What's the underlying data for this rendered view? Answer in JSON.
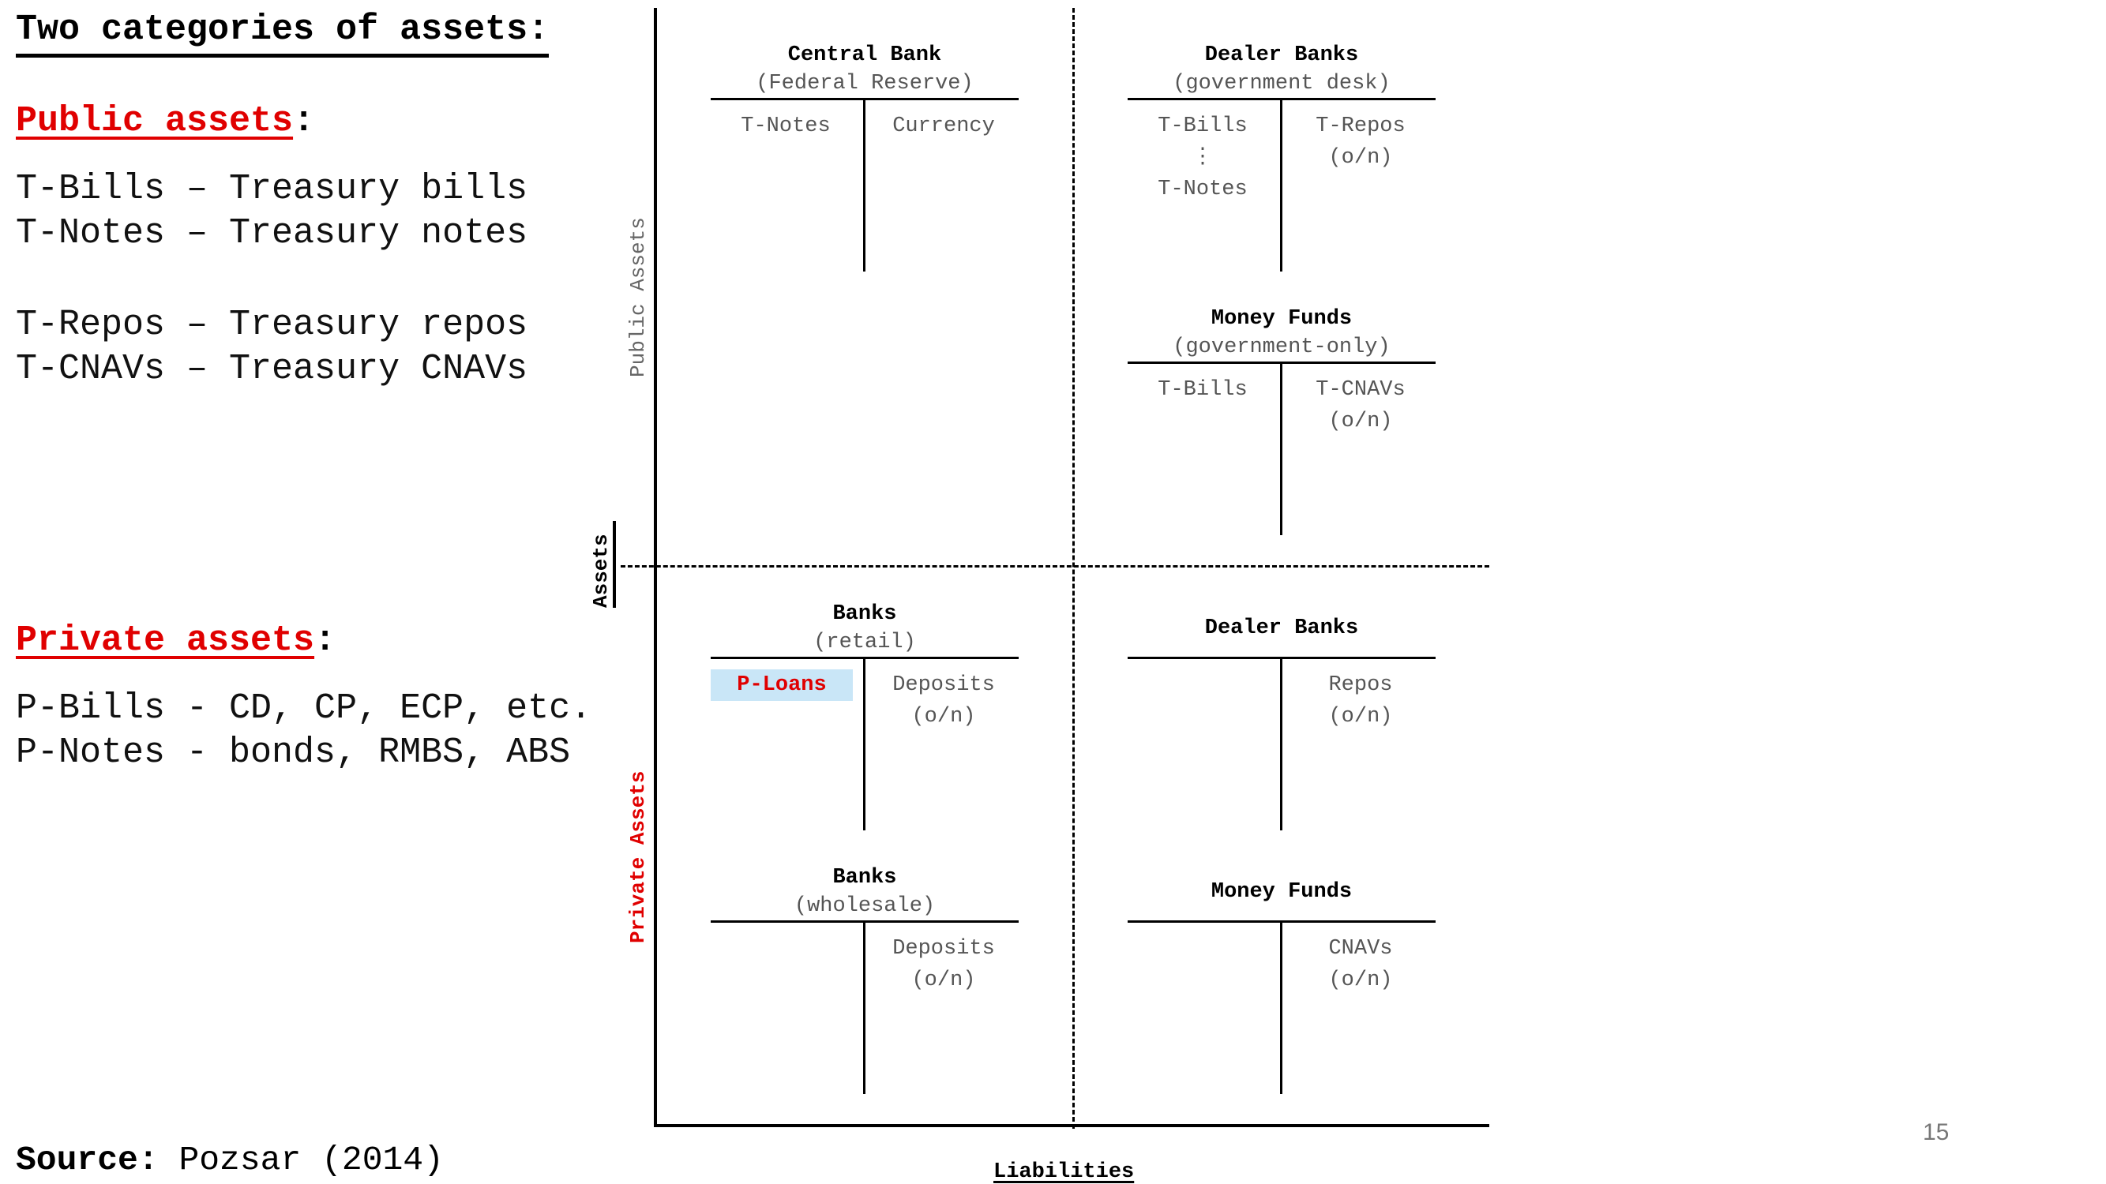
{
  "left": {
    "title": "Two categories of assets:",
    "public_heading": "Public assets",
    "public_items": [
      "T-Bills – Treasury bills",
      "T-Notes – Treasury notes",
      "T-Repos – Treasury repos",
      "T-CNAVs – Treasury CNAVs"
    ],
    "private_heading": "Private assets",
    "private_items": [
      "P-Bills - CD, CP, ECP, etc.",
      "P-Notes - bonds, RMBS, ABS"
    ],
    "colon": ":",
    "source_label": "Source:",
    "source_value": "Pozsar (2014)"
  },
  "axes": {
    "assets": "Assets",
    "public_assets": "Public Assets",
    "private_assets": "Private Assets",
    "liabilities": "Liabilities"
  },
  "accounts": {
    "central_bank": {
      "name": "Central Bank",
      "sub": "(Federal Reserve)",
      "left": "T-Notes",
      "right": "Currency"
    },
    "dealer_gov": {
      "name": "Dealer Banks",
      "sub": "(government desk)",
      "left": "T-Bills\n⋮\nT-Notes",
      "right": "T-Repos\n(o/n)"
    },
    "mmf_gov": {
      "name": "Money Funds",
      "sub": "(government-only)",
      "left": "T-Bills",
      "right": "T-CNAVs\n(o/n)"
    },
    "banks_retail": {
      "name": "Banks",
      "sub": "(retail)",
      "left": "P-Loans",
      "right": "Deposits\n(o/n)"
    },
    "dealer_priv": {
      "name": "Dealer Banks",
      "sub": "",
      "left": "",
      "right": "Repos\n(o/n)"
    },
    "banks_wholesale": {
      "name": "Banks",
      "sub": "(wholesale)",
      "left": "",
      "right": "Deposits\n(o/n)"
    },
    "mmf_priv": {
      "name": "Money Funds",
      "sub": "",
      "left": "",
      "right": "CNAVs\n(o/n)"
    }
  },
  "page_number": "15",
  "colors": {
    "red": "#e00000",
    "highlight": "#c9e6f7"
  }
}
